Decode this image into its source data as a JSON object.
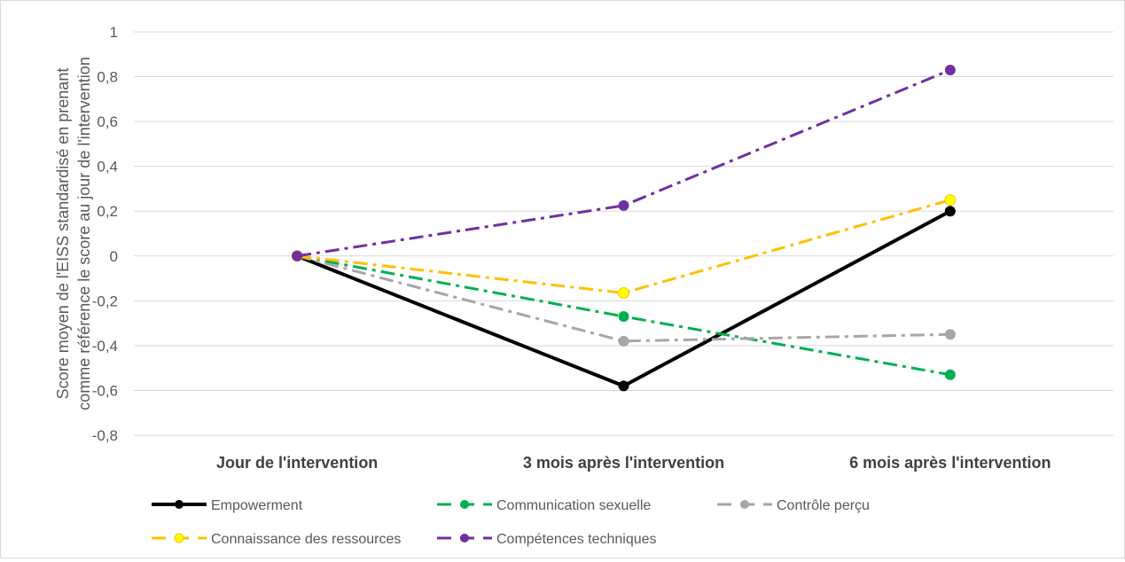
{
  "chart_data": {
    "type": "line",
    "title": "",
    "ylabel_lines": [
      "Score moyen de l'EISS  standardisé en prenant",
      "comme référence le score au jour de l'intervention"
    ],
    "xlabel": "",
    "categories": [
      "Jour de l'intervention",
      "3 mois après l'intervention",
      "6 mois après l'intervention"
    ],
    "ylim": [
      -0.8,
      1
    ],
    "yticks": [
      "1",
      "0,8",
      "0,6",
      "0,4",
      "0,2",
      "0",
      "-0,2",
      "-0,4",
      "-0,6",
      "-0,8"
    ],
    "grid": true,
    "legend_position": "bottom",
    "series": [
      {
        "name": "Empowerment",
        "values": [
          0,
          -0.58,
          0.2
        ],
        "color": "#000000",
        "dash": "solid"
      },
      {
        "name": "Communication sexuelle",
        "values": [
          0,
          -0.27,
          -0.53
        ],
        "color": "#00b050",
        "dash": "dash-dot"
      },
      {
        "name": "Contrôle perçu",
        "values": [
          0,
          -0.38,
          -0.35
        ],
        "color": "#a6a6a6",
        "dash": "dash-dot"
      },
      {
        "name": "Connaissance des ressources",
        "values": [
          0,
          -0.165,
          0.25
        ],
        "color": "#ffc000",
        "marker_color": "#ffff00",
        "dash": "dash-dot"
      },
      {
        "name": "Compétences techniques",
        "values": [
          0,
          0.225,
          0.83
        ],
        "color": "#7030a0",
        "dash": "dash-dot"
      }
    ]
  }
}
